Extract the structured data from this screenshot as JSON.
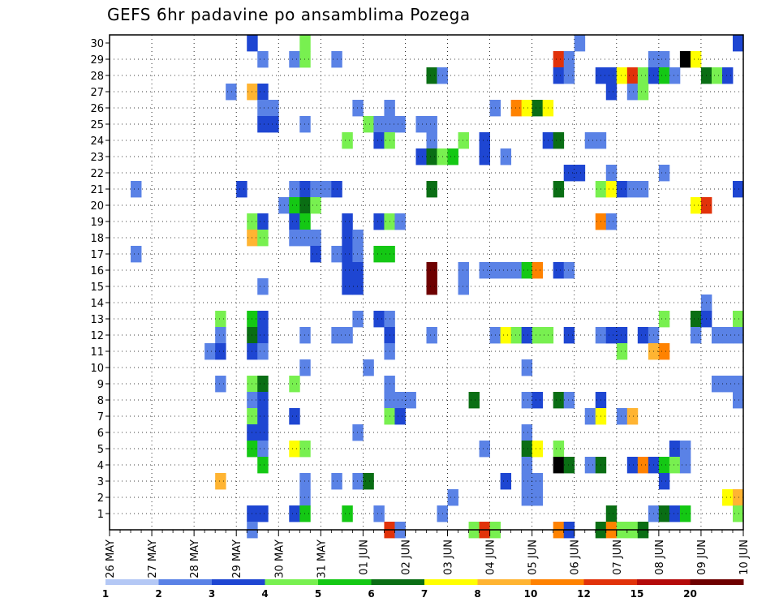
{
  "chart_data": {
    "type": "heatmap",
    "title": "GEFS 6hr padavine po ansamblima Pozega",
    "xlabel": "",
    "ylabel": "",
    "x_tick_labels": [
      "26 MAY",
      "27 MAY",
      "28 MAY",
      "29 MAY",
      "30 MAY",
      "31 MAY",
      "01 JUN",
      "02 JUN",
      "03 JUN",
      "04 JUN",
      "05 JUN",
      "06 JUN",
      "07 JUN",
      "08 JUN",
      "09 JUN",
      "10 JUN"
    ],
    "y_tick_labels": [
      "1",
      "2",
      "3",
      "4",
      "5",
      "6",
      "7",
      "8",
      "9",
      "10",
      "11",
      "12",
      "13",
      "14",
      "15",
      "16",
      "17",
      "18",
      "19",
      "20",
      "21",
      "22",
      "23",
      "24",
      "25",
      "26",
      "27",
      "28",
      "29",
      "30"
    ],
    "y_range": [
      0,
      30
    ],
    "time_steps": 60,
    "steps_per_day": 4,
    "grid": true,
    "colorbar": {
      "levels": [
        "1",
        "2",
        "3",
        "4",
        "5",
        "6",
        "7",
        "8",
        "10",
        "12",
        "15",
        "20"
      ],
      "colors": [
        "#b4c8f5",
        "#5a82e6",
        "#1e46d2",
        "#78f050",
        "#14c814",
        "#0a6e14",
        "#ffff00",
        "#ffb432",
        "#ff8200",
        "#e1320a",
        "#b40a0a",
        "#6e0000"
      ]
    },
    "cells": [
      [
        13,
        30,
        2
      ],
      [
        18,
        30,
        3
      ],
      [
        44,
        30,
        1
      ],
      [
        59,
        30,
        2
      ],
      [
        14,
        29,
        1
      ],
      [
        17,
        29,
        1
      ],
      [
        18,
        29,
        3
      ],
      [
        21,
        29,
        1
      ],
      [
        42,
        29,
        9
      ],
      [
        43,
        29,
        1
      ],
      [
        51,
        29,
        1
      ],
      [
        52,
        29,
        1
      ],
      [
        54,
        29,
        12
      ],
      [
        55,
        29,
        6
      ],
      [
        30,
        28,
        5
      ],
      [
        31,
        28,
        1
      ],
      [
        42,
        28,
        2
      ],
      [
        43,
        28,
        1
      ],
      [
        46,
        28,
        2
      ],
      [
        47,
        28,
        2
      ],
      [
        48,
        28,
        6
      ],
      [
        49,
        28,
        9
      ],
      [
        50,
        28,
        3
      ],
      [
        51,
        28,
        2
      ],
      [
        52,
        28,
        4
      ],
      [
        53,
        28,
        1
      ],
      [
        56,
        28,
        5
      ],
      [
        57,
        28,
        3
      ],
      [
        58,
        28,
        2
      ],
      [
        11,
        27,
        1
      ],
      [
        13,
        27,
        7
      ],
      [
        14,
        27,
        2
      ],
      [
        47,
        27,
        2
      ],
      [
        49,
        27,
        1
      ],
      [
        50,
        27,
        3
      ],
      [
        14,
        26,
        1
      ],
      [
        15,
        26,
        1
      ],
      [
        23,
        26,
        1
      ],
      [
        26,
        26,
        1
      ],
      [
        36,
        26,
        1
      ],
      [
        38,
        26,
        8
      ],
      [
        39,
        26,
        6
      ],
      [
        40,
        26,
        5
      ],
      [
        41,
        26,
        6
      ],
      [
        14,
        25,
        2
      ],
      [
        15,
        25,
        2
      ],
      [
        18,
        25,
        1
      ],
      [
        24,
        25,
        3
      ],
      [
        25,
        25,
        1
      ],
      [
        26,
        25,
        1
      ],
      [
        27,
        25,
        1
      ],
      [
        29,
        25,
        1
      ],
      [
        30,
        25,
        1
      ],
      [
        22,
        24,
        3
      ],
      [
        25,
        24,
        2
      ],
      [
        26,
        24,
        3
      ],
      [
        30,
        24,
        1
      ],
      [
        33,
        24,
        3
      ],
      [
        35,
        24,
        2
      ],
      [
        41,
        24,
        2
      ],
      [
        42,
        24,
        5
      ],
      [
        45,
        24,
        1
      ],
      [
        46,
        24,
        1
      ],
      [
        29,
        23,
        2
      ],
      [
        30,
        23,
        5
      ],
      [
        31,
        23,
        3
      ],
      [
        32,
        23,
        4
      ],
      [
        35,
        23,
        2
      ],
      [
        37,
        23,
        1
      ],
      [
        43,
        22,
        2
      ],
      [
        44,
        22,
        2
      ],
      [
        47,
        22,
        1
      ],
      [
        52,
        22,
        1
      ],
      [
        2,
        21,
        1
      ],
      [
        12,
        21,
        2
      ],
      [
        17,
        21,
        1
      ],
      [
        18,
        21,
        2
      ],
      [
        19,
        21,
        1
      ],
      [
        20,
        21,
        1
      ],
      [
        21,
        21,
        2
      ],
      [
        30,
        21,
        5
      ],
      [
        42,
        21,
        5
      ],
      [
        46,
        21,
        3
      ],
      [
        47,
        21,
        6
      ],
      [
        48,
        21,
        2
      ],
      [
        49,
        21,
        1
      ],
      [
        50,
        21,
        1
      ],
      [
        59,
        21,
        2
      ],
      [
        16,
        20,
        1
      ],
      [
        17,
        20,
        4
      ],
      [
        18,
        20,
        5
      ],
      [
        19,
        20,
        3
      ],
      [
        55,
        20,
        6
      ],
      [
        56,
        20,
        9
      ],
      [
        13,
        19,
        3
      ],
      [
        14,
        19,
        2
      ],
      [
        17,
        19,
        2
      ],
      [
        18,
        19,
        4
      ],
      [
        22,
        19,
        2
      ],
      [
        25,
        19,
        2
      ],
      [
        26,
        19,
        3
      ],
      [
        27,
        19,
        1
      ],
      [
        46,
        19,
        8
      ],
      [
        47,
        19,
        1
      ],
      [
        13,
        18,
        7
      ],
      [
        14,
        18,
        3
      ],
      [
        17,
        18,
        1
      ],
      [
        18,
        18,
        1
      ],
      [
        19,
        18,
        1
      ],
      [
        22,
        18,
        2
      ],
      [
        23,
        18,
        1
      ],
      [
        2,
        17,
        1
      ],
      [
        19,
        17,
        2
      ],
      [
        21,
        17,
        1
      ],
      [
        22,
        17,
        2
      ],
      [
        23,
        17,
        1
      ],
      [
        25,
        17,
        4
      ],
      [
        26,
        17,
        4
      ],
      [
        22,
        16,
        2
      ],
      [
        23,
        16,
        2
      ],
      [
        30,
        16,
        11
      ],
      [
        33,
        16,
        1
      ],
      [
        35,
        16,
        1
      ],
      [
        36,
        16,
        1
      ],
      [
        37,
        16,
        1
      ],
      [
        38,
        16,
        1
      ],
      [
        39,
        16,
        4
      ],
      [
        40,
        16,
        8
      ],
      [
        42,
        16,
        2
      ],
      [
        43,
        16,
        1
      ],
      [
        22,
        15,
        2
      ],
      [
        23,
        15,
        2
      ],
      [
        14,
        15,
        1
      ],
      [
        30,
        15,
        11
      ],
      [
        33,
        15,
        1
      ],
      [
        56,
        14,
        1
      ],
      [
        10,
        13,
        3
      ],
      [
        13,
        13,
        4
      ],
      [
        14,
        13,
        2
      ],
      [
        23,
        13,
        1
      ],
      [
        25,
        13,
        2
      ],
      [
        26,
        13,
        1
      ],
      [
        52,
        13,
        3
      ],
      [
        55,
        13,
        5
      ],
      [
        56,
        13,
        2
      ],
      [
        59,
        13,
        3
      ],
      [
        10,
        12,
        1
      ],
      [
        13,
        12,
        5
      ],
      [
        14,
        12,
        2
      ],
      [
        18,
        12,
        1
      ],
      [
        21,
        12,
        1
      ],
      [
        22,
        12,
        1
      ],
      [
        26,
        12,
        2
      ],
      [
        30,
        12,
        1
      ],
      [
        36,
        12,
        1
      ],
      [
        37,
        12,
        6
      ],
      [
        38,
        12,
        3
      ],
      [
        39,
        12,
        2
      ],
      [
        40,
        12,
        3
      ],
      [
        41,
        12,
        3
      ],
      [
        43,
        12,
        2
      ],
      [
        46,
        12,
        1
      ],
      [
        47,
        12,
        2
      ],
      [
        48,
        12,
        2
      ],
      [
        50,
        12,
        2
      ],
      [
        51,
        12,
        1
      ],
      [
        55,
        12,
        1
      ],
      [
        57,
        12,
        1
      ],
      [
        58,
        12,
        1
      ],
      [
        59,
        12,
        1
      ],
      [
        9,
        11,
        1
      ],
      [
        10,
        11,
        2
      ],
      [
        13,
        11,
        2
      ],
      [
        14,
        11,
        1
      ],
      [
        26,
        11,
        1
      ],
      [
        48,
        11,
        3
      ],
      [
        51,
        11,
        7
      ],
      [
        52,
        11,
        8
      ],
      [
        18,
        10,
        1
      ],
      [
        24,
        10,
        1
      ],
      [
        39,
        10,
        1
      ],
      [
        10,
        9,
        1
      ],
      [
        13,
        9,
        3
      ],
      [
        14,
        9,
        5
      ],
      [
        17,
        9,
        3
      ],
      [
        26,
        9,
        1
      ],
      [
        57,
        9,
        1
      ],
      [
        58,
        9,
        1
      ],
      [
        59,
        9,
        1
      ],
      [
        13,
        8,
        1
      ],
      [
        14,
        8,
        2
      ],
      [
        26,
        8,
        1
      ],
      [
        27,
        8,
        1
      ],
      [
        28,
        8,
        1
      ],
      [
        34,
        8,
        5
      ],
      [
        39,
        8,
        1
      ],
      [
        40,
        8,
        2
      ],
      [
        42,
        8,
        5
      ],
      [
        43,
        8,
        1
      ],
      [
        46,
        8,
        2
      ],
      [
        59,
        8,
        1
      ],
      [
        13,
        7,
        3
      ],
      [
        14,
        7,
        2
      ],
      [
        17,
        7,
        2
      ],
      [
        26,
        7,
        3
      ],
      [
        27,
        7,
        2
      ],
      [
        45,
        7,
        1
      ],
      [
        46,
        7,
        6
      ],
      [
        48,
        7,
        1
      ],
      [
        49,
        7,
        7
      ],
      [
        13,
        6,
        2
      ],
      [
        14,
        6,
        2
      ],
      [
        23,
        6,
        1
      ],
      [
        39,
        6,
        1
      ],
      [
        13,
        5,
        4
      ],
      [
        14,
        5,
        1
      ],
      [
        17,
        5,
        6
      ],
      [
        18,
        5,
        3
      ],
      [
        35,
        5,
        1
      ],
      [
        39,
        5,
        5
      ],
      [
        40,
        5,
        6
      ],
      [
        42,
        5,
        3
      ],
      [
        53,
        5,
        2
      ],
      [
        54,
        5,
        1
      ],
      [
        14,
        4,
        4
      ],
      [
        39,
        4,
        1
      ],
      [
        42,
        4,
        12
      ],
      [
        43,
        4,
        5
      ],
      [
        45,
        4,
        1
      ],
      [
        46,
        4,
        5
      ],
      [
        49,
        4,
        2
      ],
      [
        50,
        4,
        8
      ],
      [
        51,
        4,
        2
      ],
      [
        52,
        4,
        4
      ],
      [
        53,
        4,
        3
      ],
      [
        54,
        4,
        1
      ],
      [
        10,
        3,
        7
      ],
      [
        18,
        3,
        1
      ],
      [
        21,
        3,
        1
      ],
      [
        23,
        3,
        1
      ],
      [
        24,
        3,
        5
      ],
      [
        37,
        3,
        2
      ],
      [
        39,
        3,
        1
      ],
      [
        40,
        3,
        1
      ],
      [
        52,
        3,
        2
      ],
      [
        18,
        2,
        1
      ],
      [
        32,
        2,
        1
      ],
      [
        39,
        2,
        1
      ],
      [
        40,
        2,
        1
      ],
      [
        58,
        2,
        6
      ],
      [
        59,
        2,
        7
      ],
      [
        13,
        1,
        2
      ],
      [
        14,
        1,
        2
      ],
      [
        17,
        1,
        2
      ],
      [
        18,
        1,
        4
      ],
      [
        22,
        1,
        4
      ],
      [
        25,
        1,
        1
      ],
      [
        31,
        1,
        1
      ],
      [
        47,
        1,
        5
      ],
      [
        51,
        1,
        1
      ],
      [
        52,
        1,
        5
      ],
      [
        53,
        1,
        2
      ],
      [
        54,
        1,
        4
      ],
      [
        59,
        1,
        3
      ],
      [
        13,
        0,
        1
      ],
      [
        26,
        0,
        9
      ],
      [
        27,
        0,
        1
      ],
      [
        34,
        0,
        3
      ],
      [
        35,
        0,
        9
      ],
      [
        36,
        0,
        3
      ],
      [
        42,
        0,
        8
      ],
      [
        43,
        0,
        2
      ],
      [
        46,
        0,
        5
      ],
      [
        47,
        0,
        8
      ],
      [
        48,
        0,
        3
      ],
      [
        49,
        0,
        3
      ],
      [
        50,
        0,
        5
      ]
    ]
  }
}
